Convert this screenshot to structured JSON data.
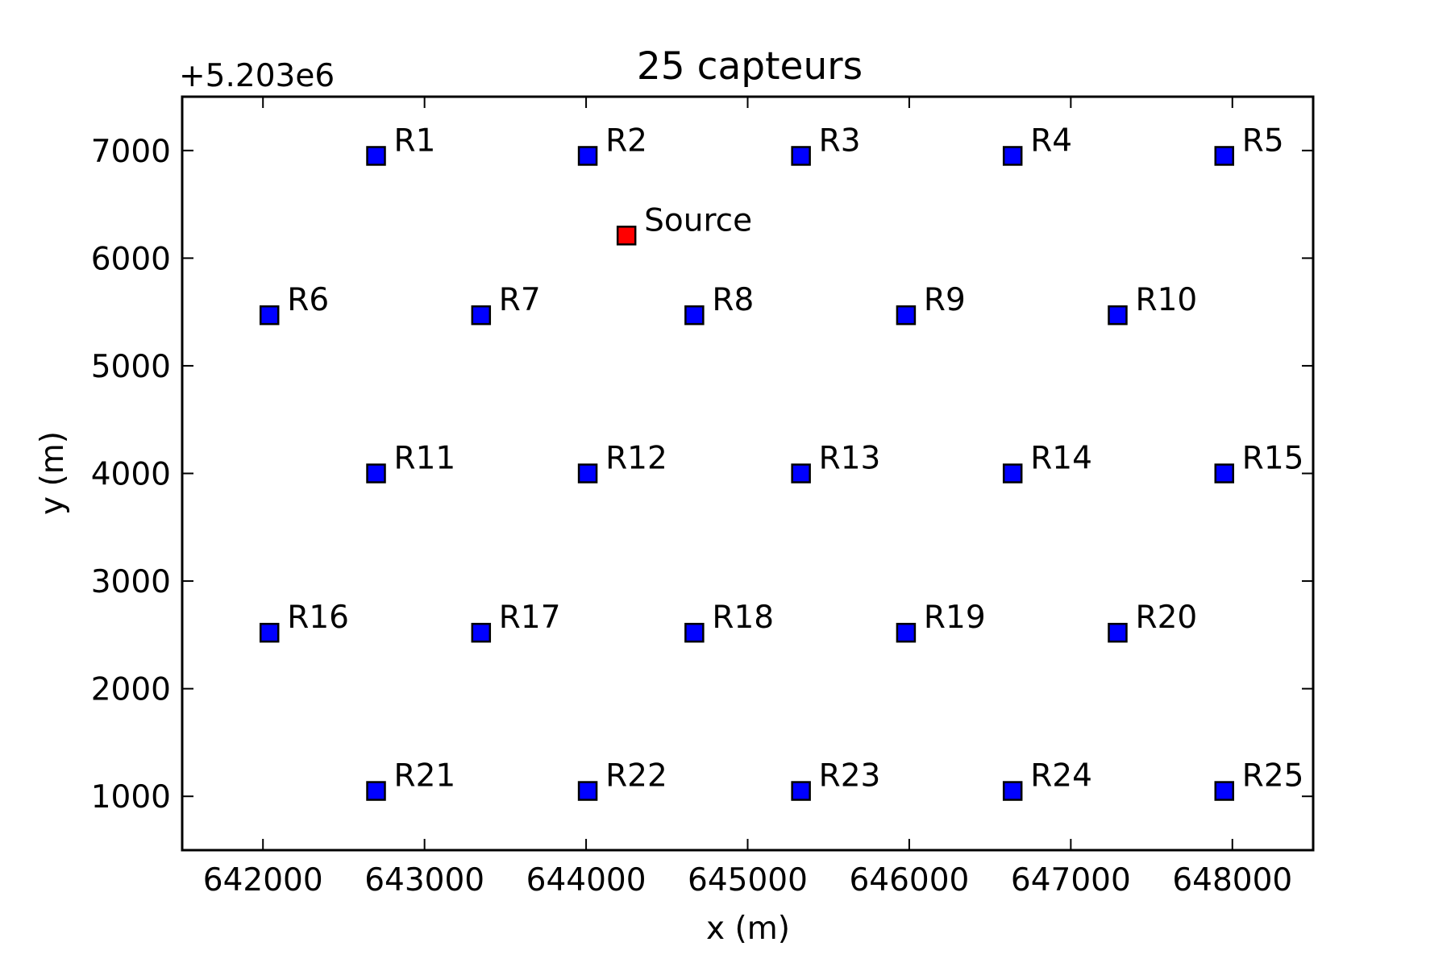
{
  "chart_data": {
    "type": "scatter",
    "title": "25 capteurs",
    "xlabel": "x (m)",
    "ylabel": "y (m)",
    "y_offset_label": "+5.203e6",
    "xlim": [
      641500,
      648500
    ],
    "ylim": [
      500,
      7500
    ],
    "x_ticks": [
      642000,
      643000,
      644000,
      645000,
      646000,
      647000,
      648000
    ],
    "x_tick_labels": [
      "642000",
      "643000",
      "644000",
      "645000",
      "646000",
      "647000",
      "648000"
    ],
    "y_ticks": [
      1000,
      2000,
      3000,
      4000,
      5000,
      6000,
      7000
    ],
    "y_tick_labels": [
      "1000",
      "2000",
      "3000",
      "4000",
      "5000",
      "6000",
      "7000"
    ],
    "grid": false,
    "marker": "square",
    "series": [
      {
        "name": "",
        "color": "#0000ff",
        "points": [
          {
            "label": "R1",
            "x": 642700,
            "y": 6950
          },
          {
            "label": "R2",
            "x": 644010,
            "y": 6950
          },
          {
            "label": "R3",
            "x": 645330,
            "y": 6950
          },
          {
            "label": "R4",
            "x": 646640,
            "y": 6950
          },
          {
            "label": "R5",
            "x": 647950,
            "y": 6950
          },
          {
            "label": "R6",
            "x": 642040,
            "y": 5470
          },
          {
            "label": "R7",
            "x": 643350,
            "y": 5470
          },
          {
            "label": "R8",
            "x": 644670,
            "y": 5470
          },
          {
            "label": "R9",
            "x": 645980,
            "y": 5470
          },
          {
            "label": "R10",
            "x": 647290,
            "y": 5470
          },
          {
            "label": "R11",
            "x": 642700,
            "y": 4000
          },
          {
            "label": "R12",
            "x": 644010,
            "y": 4000
          },
          {
            "label": "R13",
            "x": 645330,
            "y": 4000
          },
          {
            "label": "R14",
            "x": 646640,
            "y": 4000
          },
          {
            "label": "R15",
            "x": 647950,
            "y": 4000
          },
          {
            "label": "R16",
            "x": 642040,
            "y": 2520
          },
          {
            "label": "R17",
            "x": 643350,
            "y": 2520
          },
          {
            "label": "R18",
            "x": 644670,
            "y": 2520
          },
          {
            "label": "R19",
            "x": 645980,
            "y": 2520
          },
          {
            "label": "R20",
            "x": 647290,
            "y": 2520
          },
          {
            "label": "R21",
            "x": 642700,
            "y": 1050
          },
          {
            "label": "R22",
            "x": 644010,
            "y": 1050
          },
          {
            "label": "R23",
            "x": 645330,
            "y": 1050
          },
          {
            "label": "R24",
            "x": 646640,
            "y": 1050
          },
          {
            "label": "R25",
            "x": 647950,
            "y": 1050
          }
        ]
      },
      {
        "name": "",
        "color": "#ff0000",
        "points": [
          {
            "label": "Source",
            "x": 644250,
            "y": 6210
          }
        ]
      }
    ]
  }
}
